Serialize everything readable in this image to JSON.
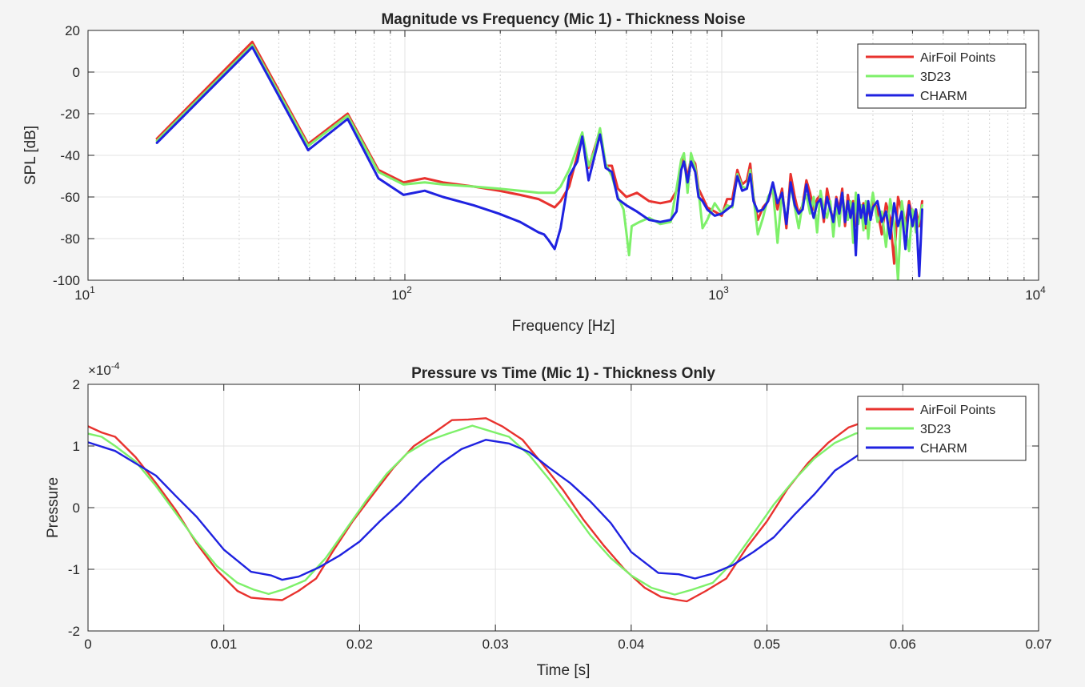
{
  "chart_data": [
    {
      "type": "line",
      "title": "Magnitude vs Frequency (Mic 1) - Thickness Noise",
      "xlabel": "Frequency [Hz]",
      "ylabel": "SPL [dB]",
      "xscale": "log",
      "xlim": [
        10,
        10000
      ],
      "ylim": [
        -100,
        20
      ],
      "xticks": [
        10,
        100,
        1000,
        10000
      ],
      "xtick_labels": [
        {
          "base": "10",
          "exp": "1"
        },
        {
          "base": "10",
          "exp": "2"
        },
        {
          "base": "10",
          "exp": "3"
        },
        {
          "base": "10",
          "exp": "4"
        }
      ],
      "yticks": [
        -100,
        -80,
        -60,
        -40,
        -20,
        0,
        20
      ],
      "ytick_labels": [
        "-100",
        "-80",
        "-60",
        "-40",
        "-20",
        "0",
        "20"
      ],
      "grid": true,
      "legend_position": "top-right",
      "series": [
        {
          "name": "AirFoil Points",
          "color": "#e8322e",
          "x": [
            16.5,
            33,
            49.5,
            66,
            82.5,
            99,
            115.5,
            132,
            165,
            198,
            231,
            264,
            297,
            310,
            330,
            350,
            363,
            380,
            396,
            413,
            430,
            450,
            470,
            500,
            540,
            590,
            640,
            690,
            720,
            745,
            760,
            780,
            800,
            825,
            845,
            870,
            900,
            950,
            1000,
            1040,
            1080,
            1120,
            1160,
            1200,
            1230,
            1260,
            1300,
            1350,
            1400,
            1450,
            1500,
            1550,
            1600,
            1650,
            1700,
            1750,
            1800,
            1850,
            1900,
            1950,
            2000,
            2050,
            2100,
            2150,
            2200,
            2250,
            2300,
            2350,
            2400,
            2450,
            2500,
            2550,
            2600,
            2650,
            2700,
            2750,
            2800,
            2850,
            2900,
            2950,
            3000,
            3100,
            3200,
            3300,
            3400,
            3500,
            3600,
            3700,
            3800,
            3900,
            4000,
            4100,
            4200,
            4290
          ],
          "values": [
            -32,
            14.5,
            -34.5,
            -20,
            -47,
            -53,
            -51,
            -53,
            -55,
            -57,
            -59,
            -61,
            -65,
            -62,
            -55,
            -40,
            -31,
            -46,
            -37,
            -28,
            -45,
            -45,
            -56,
            -60,
            -58,
            -62,
            -63,
            -62,
            -57,
            -44,
            -41,
            -51,
            -41,
            -44,
            -56,
            -60,
            -65,
            -67,
            -69,
            -61,
            -61,
            -47,
            -54,
            -52,
            -44,
            -60,
            -71,
            -65,
            -62,
            -55,
            -66,
            -56,
            -75,
            -49,
            -60,
            -68,
            -64,
            -52,
            -58,
            -66,
            -61,
            -59,
            -72,
            -56,
            -64,
            -73,
            -60,
            -66,
            -56,
            -74,
            -59,
            -68,
            -62,
            -74,
            -61,
            -67,
            -63,
            -75,
            -64,
            -69,
            -61,
            -66,
            -78,
            -63,
            -70,
            -92,
            -60,
            -67,
            -74,
            -62,
            -70,
            -66,
            -74,
            -62
          ]
        },
        {
          "name": "3D23",
          "color": "#7ef06a",
          "x": [
            16.5,
            33,
            49.5,
            66,
            82.5,
            99,
            115.5,
            132,
            165,
            198,
            231,
            264,
            297,
            310,
            330,
            350,
            363,
            380,
            396,
            413,
            430,
            450,
            470,
            490,
            500,
            510,
            520,
            550,
            590,
            640,
            690,
            720,
            745,
            760,
            780,
            800,
            825,
            845,
            870,
            900,
            950,
            1000,
            1040,
            1080,
            1120,
            1160,
            1200,
            1230,
            1260,
            1300,
            1350,
            1400,
            1450,
            1500,
            1550,
            1600,
            1650,
            1700,
            1750,
            1800,
            1850,
            1900,
            1950,
            2000,
            2050,
            2100,
            2150,
            2200,
            2250,
            2300,
            2350,
            2400,
            2450,
            2500,
            2550,
            2600,
            2650,
            2700,
            2750,
            2800,
            2850,
            2900,
            2950,
            3000,
            3100,
            3200,
            3300,
            3400,
            3500,
            3600,
            3700,
            3800,
            3900,
            4000,
            4100,
            4200,
            4290
          ],
          "values": [
            -33,
            13,
            -35.5,
            -21,
            -48,
            -54,
            -53,
            -54,
            -55,
            -56,
            -57,
            -58,
            -58,
            -55,
            -47,
            -36,
            -29,
            -45,
            -38,
            -27,
            -44,
            -50,
            -60,
            -66,
            -77,
            -88,
            -74,
            -72,
            -70,
            -73,
            -72,
            -56,
            -42,
            -39,
            -58,
            -39,
            -46,
            -57,
            -75,
            -71,
            -63,
            -68,
            -64,
            -65,
            -49,
            -55,
            -56,
            -47,
            -60,
            -78,
            -70,
            -60,
            -56,
            -82,
            -58,
            -72,
            -54,
            -65,
            -75,
            -63,
            -59,
            -68,
            -60,
            -77,
            -57,
            -66,
            -70,
            -62,
            -79,
            -63,
            -74,
            -58,
            -68,
            -71,
            -62,
            -82,
            -58,
            -73,
            -64,
            -76,
            -62,
            -80,
            -66,
            -58,
            -72,
            -67,
            -84,
            -61,
            -73,
            -100,
            -62,
            -74,
            -86,
            -66,
            -77,
            -71,
            -64
          ]
        },
        {
          "name": "CHARM",
          "color": "#1f22e0",
          "x": [
            16.5,
            33,
            49.5,
            66,
            82.5,
            99,
            115.5,
            132,
            165,
            198,
            231,
            264,
            275,
            285,
            297,
            310,
            330,
            350,
            363,
            380,
            396,
            413,
            430,
            450,
            470,
            500,
            540,
            590,
            640,
            690,
            720,
            745,
            760,
            780,
            800,
            825,
            845,
            870,
            900,
            950,
            1000,
            1040,
            1080,
            1120,
            1160,
            1200,
            1230,
            1260,
            1300,
            1350,
            1400,
            1450,
            1500,
            1550,
            1600,
            1650,
            1700,
            1750,
            1800,
            1850,
            1900,
            1950,
            2000,
            2050,
            2100,
            2150,
            2200,
            2250,
            2300,
            2350,
            2400,
            2450,
            2500,
            2550,
            2600,
            2650,
            2700,
            2750,
            2800,
            2850,
            2900,
            2950,
            3000,
            3100,
            3200,
            3300,
            3400,
            3500,
            3600,
            3700,
            3800,
            3900,
            4000,
            4100,
            4200,
            4290
          ],
          "values": [
            -34,
            12,
            -37.5,
            -22.5,
            -51,
            -59,
            -57,
            -60,
            -64,
            -68,
            -72,
            -77,
            -78,
            -81,
            -85,
            -75,
            -50,
            -43,
            -31,
            -52,
            -41,
            -30,
            -46,
            -48,
            -61,
            -64,
            -67,
            -71,
            -72,
            -71,
            -67,
            -47,
            -43,
            -53,
            -43,
            -48,
            -60,
            -62,
            -66,
            -69,
            -68,
            -66,
            -64,
            -50,
            -57,
            -56,
            -49,
            -62,
            -67,
            -66,
            -62,
            -53,
            -63,
            -58,
            -73,
            -53,
            -64,
            -68,
            -66,
            -54,
            -63,
            -70,
            -63,
            -61,
            -70,
            -60,
            -66,
            -72,
            -61,
            -68,
            -58,
            -72,
            -62,
            -70,
            -63,
            -88,
            -59,
            -70,
            -64,
            -73,
            -62,
            -71,
            -65,
            -62,
            -72,
            -67,
            -80,
            -63,
            -74,
            -67,
            -85,
            -64,
            -74,
            -66,
            -98,
            -66
          ]
        }
      ]
    },
    {
      "type": "line",
      "title": "Pressure vs Time (Mic 1) - Thickness Only",
      "xlabel": "Time [s]",
      "ylabel": "Pressure",
      "y_multiplier": {
        "base": "×10",
        "exp": "-4"
      },
      "xlim": [
        0,
        0.07
      ],
      "ylim": [
        -2,
        2
      ],
      "xticks": [
        0,
        0.01,
        0.02,
        0.03,
        0.04,
        0.05,
        0.06,
        0.07
      ],
      "xtick_labels": [
        "0",
        "0.01",
        "0.02",
        "0.03",
        "0.04",
        "0.05",
        "0.06",
        "0.07"
      ],
      "yticks": [
        -2,
        -1,
        0,
        1,
        2
      ],
      "ytick_labels": [
        "-2",
        "-1",
        "0",
        "1",
        "2"
      ],
      "grid": true,
      "legend_position": "top-right",
      "series": [
        {
          "name": "AirFoil Points",
          "color": "#e8322e",
          "x": [
            0,
            0.001,
            0.002,
            0.0035,
            0.005,
            0.0065,
            0.008,
            0.0095,
            0.011,
            0.012,
            0.013,
            0.0143,
            0.0155,
            0.0168,
            0.018,
            0.0195,
            0.021,
            0.0225,
            0.024,
            0.0255,
            0.0268,
            0.028,
            0.0293,
            0.0305,
            0.032,
            0.0335,
            0.035,
            0.0365,
            0.038,
            0.0395,
            0.041,
            0.0422,
            0.0435,
            0.0441,
            0.0455,
            0.047,
            0.0485,
            0.05,
            0.0515,
            0.053,
            0.0545,
            0.056,
            0.0575
          ],
          "values": [
            1.32,
            1.22,
            1.15,
            0.82,
            0.4,
            -0.05,
            -0.58,
            -1.02,
            -1.35,
            -1.46,
            -1.48,
            -1.5,
            -1.35,
            -1.15,
            -0.72,
            -0.22,
            0.22,
            0.65,
            1.0,
            1.22,
            1.42,
            1.43,
            1.45,
            1.32,
            1.1,
            0.7,
            0.28,
            -0.2,
            -0.62,
            -1.0,
            -1.3,
            -1.45,
            -1.5,
            -1.52,
            -1.35,
            -1.15,
            -0.65,
            -0.22,
            0.3,
            0.72,
            1.05,
            1.3,
            1.42
          ]
        },
        {
          "name": "3D23",
          "color": "#7ef06a",
          "x": [
            0,
            0.001,
            0.002,
            0.0035,
            0.005,
            0.0065,
            0.008,
            0.0095,
            0.011,
            0.0122,
            0.0133,
            0.0145,
            0.016,
            0.0175,
            0.019,
            0.0205,
            0.022,
            0.0235,
            0.025,
            0.0265,
            0.0283,
            0.0295,
            0.031,
            0.0325,
            0.034,
            0.0355,
            0.037,
            0.0385,
            0.04,
            0.0415,
            0.0432,
            0.0445,
            0.046,
            0.0475,
            0.049,
            0.0505,
            0.052,
            0.0535,
            0.055,
            0.0565,
            0.058
          ],
          "values": [
            1.2,
            1.15,
            1.0,
            0.75,
            0.35,
            -0.1,
            -0.55,
            -0.95,
            -1.22,
            -1.33,
            -1.4,
            -1.32,
            -1.18,
            -0.82,
            -0.35,
            0.12,
            0.55,
            0.88,
            1.08,
            1.2,
            1.33,
            1.25,
            1.15,
            0.85,
            0.45,
            0.0,
            -0.45,
            -0.82,
            -1.1,
            -1.3,
            -1.41,
            -1.33,
            -1.22,
            -0.88,
            -0.42,
            0.05,
            0.45,
            0.8,
            1.05,
            1.2,
            1.27
          ]
        },
        {
          "name": "CHARM",
          "color": "#1f22e0",
          "x": [
            0,
            0.002,
            0.0035,
            0.005,
            0.0065,
            0.008,
            0.01,
            0.012,
            0.0135,
            0.0143,
            0.0155,
            0.017,
            0.0185,
            0.02,
            0.0215,
            0.023,
            0.0245,
            0.026,
            0.0275,
            0.0293,
            0.031,
            0.0325,
            0.034,
            0.0355,
            0.037,
            0.0385,
            0.04,
            0.042,
            0.0435,
            0.0447,
            0.046,
            0.0475,
            0.049,
            0.0505,
            0.052,
            0.0535,
            0.055,
            0.0565,
            0.058
          ],
          "values": [
            1.06,
            0.92,
            0.72,
            0.52,
            0.18,
            -0.15,
            -0.68,
            -1.04,
            -1.1,
            -1.17,
            -1.12,
            -0.97,
            -0.78,
            -0.55,
            -0.22,
            0.08,
            0.42,
            0.72,
            0.95,
            1.1,
            1.04,
            0.9,
            0.64,
            0.4,
            0.1,
            -0.25,
            -0.72,
            -1.06,
            -1.08,
            -1.15,
            -1.07,
            -0.93,
            -0.72,
            -0.48,
            -0.12,
            0.22,
            0.6,
            0.82,
            1.05
          ]
        }
      ]
    }
  ]
}
